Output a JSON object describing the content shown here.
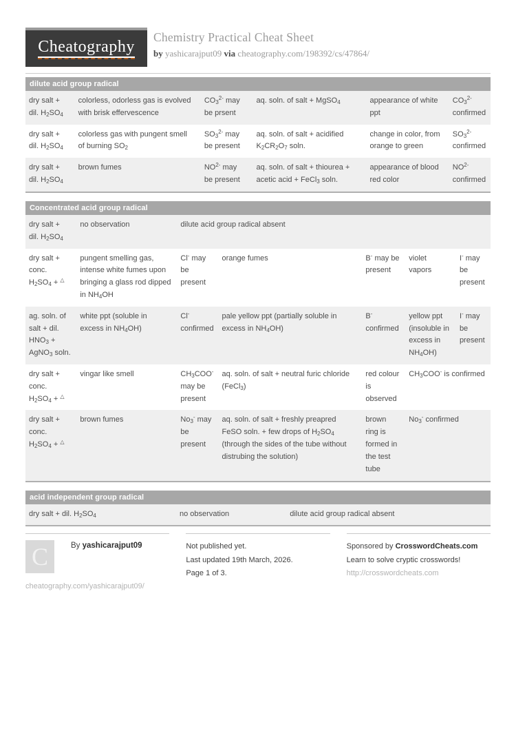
{
  "header": {
    "logo_text": "Cheatography",
    "title": "Chemistry Practical Cheat Sheet",
    "by_label": "by",
    "author": "yashicarajput09",
    "via_label": "via",
    "sheet_url": "cheatography.com/198392/cs/47864/"
  },
  "colors": {
    "table_header_bg": "#a7a7a7",
    "row_shaded": "#efefef",
    "logo_bg": "#3b3b3b",
    "logo_underline_orange": "#b35c1c",
    "body_text": "#4d4d4d",
    "muted_text": "#9b9b9b"
  },
  "tables": [
    {
      "title": "dilute acid group radical",
      "columns": [
        10.6,
        27.1,
        11.2,
        24.4,
        17.8,
        8.9
      ],
      "rows": [
        [
          "dry salt + dil. H~2~SO~4~",
          "colorless, odorless gas is evolved with brisk effervescence",
          "CO~3~^2-^ may be prsent",
          "aq. soln. of salt + MgSO~4~",
          "appearance of white ppt",
          "CO~3~^2-^ confirmed"
        ],
        [
          "dry salt + dil. H~2~SO~4~",
          "colorless gas with pungent smell of burning SO~2~",
          "SO~3~^2-^ may be present",
          "aq. soln. of salt + acidified K~2~CR~2~O~7~ soln.",
          "change in color, from orange to green",
          "SO~3~^2-^ confirmed"
        ],
        [
          "dry salt + dil. H~2~SO~4~",
          "brown fumes",
          "NO^2-^ may be present",
          "aq. soln. of salt + thiourea + acetic acid + FeCl~3~ soln.",
          "appearance of blood red color",
          "NO^2-^ confirmed"
        ]
      ]
    },
    {
      "title": "Concentrated acid group radical",
      "columns": [
        11.0,
        21.6,
        8.9,
        30.9,
        9.3,
        10.9,
        7.4
      ],
      "rows": [
        [
          "dry salt + dil. H~2~SO~4~",
          "no observation",
          {
            "text": "dilute acid group radical absent",
            "span": 5
          }
        ],
        [
          "dry salt + conc. H~2~SO~4~ + ^△^",
          "pungent smelling gas, intense white fumes upon bringing a glass rod dipped in NH~4~OH",
          "Cl^-^ may be present",
          "orange fumes",
          "B^-^ may be present",
          "violet vapors",
          "I^-^ may be present"
        ],
        [
          "ag. soln. of salt + dil. HNO~3~ + AgNO~3~ soln.",
          "white ppt (soluble in excess in NH~4~OH)",
          "Cl^-^ confirmed",
          "pale yellow ppt (partially soluble in excess in NH~4~OH)",
          "B^-^ confirmed",
          "yellow ppt (insoluble in excess in NH~4~OH)",
          "I^-^ may be present"
        ],
        [
          "dry salt + conc. H~2~SO~4~ + ^△^",
          "vingar like smell",
          "CH~3~COO^-^ may be present",
          "aq. soln. of salt + neutral furic chloride (FeCl~3~)",
          "red colour is observed",
          {
            "text": "CH~3~COO^-^ is confirmed",
            "span": 2
          }
        ],
        [
          "dry salt + conc. H~2~SO~4~ + ^△^",
          "brown fumes",
          "No~3~^-^ may be present",
          "aq. soln. of salt + freshly preapred FeSO soln. + few drops of H~2~SO~4~ (through the sides of the tube without distrubing the solution)",
          "brown ring is formed in the test tube",
          {
            "text": "No~3~^-^ confirmed",
            "span": 2
          }
        ]
      ]
    },
    {
      "title": "acid independent group radical",
      "columns": [
        32.4,
        23.7,
        43.9
      ],
      "rows": [
        [
          "dry salt + dil. H~2~SO~4~",
          "no observation",
          "dilute acid group radical absent"
        ]
      ]
    }
  ],
  "footer": {
    "avatar_letter": "C",
    "by_label": "By",
    "author": "yashicarajput09",
    "profile_url": "cheatography.com/yashicarajput09/",
    "status": "Not published yet.",
    "updated": "Last updated 19th March, 2026.",
    "page_info": "Page 1 of 3.",
    "sponsor_prefix": "Sponsored by",
    "sponsor_name": "CrosswordCheats.com",
    "sponsor_tagline": "Learn to solve cryptic crosswords!",
    "sponsor_url": "http://crosswordcheats.com"
  }
}
